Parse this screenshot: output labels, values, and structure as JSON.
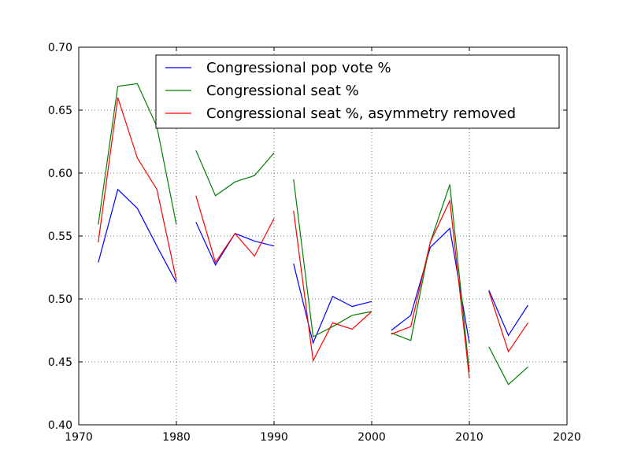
{
  "chart_data": {
    "type": "line",
    "title": "",
    "xlabel": "",
    "ylabel": "",
    "xlim": [
      1970,
      2020
    ],
    "ylim": [
      0.4,
      0.7
    ],
    "x_ticks": [
      1970,
      1980,
      1990,
      2000,
      2010,
      2020
    ],
    "y_ticks": [
      0.4,
      0.45,
      0.5,
      0.55,
      0.6,
      0.65,
      0.7
    ],
    "x_tick_labels": [
      "1970",
      "1980",
      "1990",
      "2000",
      "2010",
      "2020"
    ],
    "y_tick_labels": [
      "0.40",
      "0.45",
      "0.50",
      "0.55",
      "0.60",
      "0.65",
      "0.70"
    ],
    "grid": true,
    "legend_placement": "top-right",
    "series": [
      {
        "name": "Congressional pop vote %",
        "color": "#0000ff",
        "segments": [
          [
            [
              1972,
              0.529
            ],
            [
              1974,
              0.587
            ],
            [
              1976,
              0.572
            ],
            [
              1978,
              0.542
            ],
            [
              1980,
              0.513
            ]
          ],
          [
            [
              1982,
              0.561
            ],
            [
              1984,
              0.527
            ],
            [
              1986,
              0.552
            ],
            [
              1988,
              0.546
            ],
            [
              1990,
              0.542
            ]
          ],
          [
            [
              1992,
              0.528
            ],
            [
              1994,
              0.465
            ],
            [
              1996,
              0.502
            ],
            [
              1998,
              0.494
            ],
            [
              2000,
              0.498
            ]
          ],
          [
            [
              2002,
              0.475
            ],
            [
              2004,
              0.487
            ],
            [
              2006,
              0.541
            ],
            [
              2008,
              0.556
            ],
            [
              2010,
              0.465
            ]
          ],
          [
            [
              2012,
              0.507
            ],
            [
              2014,
              0.471
            ],
            [
              2016,
              0.495
            ]
          ]
        ]
      },
      {
        "name": "Congressional seat %",
        "color": "#008000",
        "segments": [
          [
            [
              1972,
              0.559
            ],
            [
              1974,
              0.669
            ],
            [
              1976,
              0.671
            ],
            [
              1978,
              0.637
            ],
            [
              1980,
              0.559
            ]
          ],
          [
            [
              1982,
              0.618
            ],
            [
              1984,
              0.582
            ],
            [
              1986,
              0.593
            ],
            [
              1988,
              0.598
            ],
            [
              1990,
              0.616
            ]
          ],
          [
            [
              1992,
              0.595
            ],
            [
              1994,
              0.47
            ],
            [
              1996,
              0.478
            ],
            [
              1998,
              0.487
            ],
            [
              2000,
              0.49
            ]
          ],
          [
            [
              2002,
              0.473
            ],
            [
              2004,
              0.467
            ],
            [
              2006,
              0.545
            ],
            [
              2008,
              0.591
            ],
            [
              2010,
              0.442
            ]
          ],
          [
            [
              2012,
              0.462
            ],
            [
              2014,
              0.432
            ],
            [
              2016,
              0.446
            ]
          ]
        ]
      },
      {
        "name": "Congressional seat %, asymmetry removed",
        "color": "#ff0000",
        "segments": [
          [
            [
              1972,
              0.545
            ],
            [
              1974,
              0.66
            ],
            [
              1976,
              0.612
            ],
            [
              1978,
              0.587
            ],
            [
              1980,
              0.515
            ]
          ],
          [
            [
              1982,
              0.582
            ],
            [
              1984,
              0.529
            ],
            [
              1986,
              0.552
            ],
            [
              1988,
              0.534
            ],
            [
              1990,
              0.564
            ]
          ],
          [
            [
              1992,
              0.57
            ],
            [
              1994,
              0.451
            ],
            [
              1996,
              0.481
            ],
            [
              1998,
              0.476
            ],
            [
              2000,
              0.49
            ]
          ],
          [
            [
              2002,
              0.472
            ],
            [
              2004,
              0.478
            ],
            [
              2006,
              0.545
            ],
            [
              2008,
              0.578
            ],
            [
              2010,
              0.437
            ]
          ],
          [
            [
              2012,
              0.506
            ],
            [
              2014,
              0.458
            ],
            [
              2016,
              0.481
            ]
          ]
        ]
      }
    ]
  }
}
